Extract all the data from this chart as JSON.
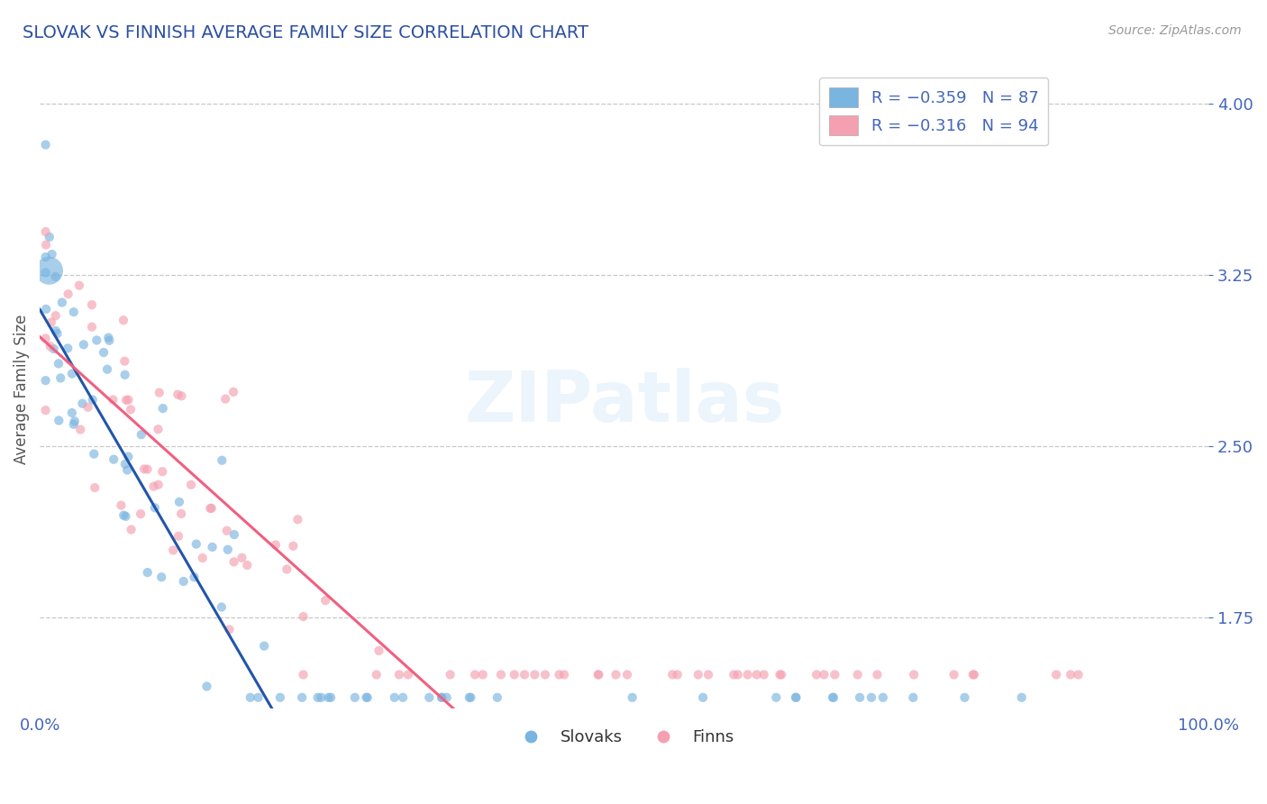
{
  "title": "SLOVAK VS FINNISH AVERAGE FAMILY SIZE CORRELATION CHART",
  "source": "Source: ZipAtlas.com",
  "ylabel": "Average Family Size",
  "xlim": [
    0.0,
    100.0
  ],
  "ylim": [
    1.35,
    4.15
  ],
  "yticks": [
    1.75,
    2.5,
    3.25,
    4.0
  ],
  "xticks": [
    0.0,
    100.0
  ],
  "xticklabels": [
    "0.0%",
    "100.0%"
  ],
  "title_color": "#2b4fa0",
  "tick_color": "#4466bb",
  "grid_color": "#c8c8c8",
  "slovak_color": "#7ab4e0",
  "finn_color": "#f4a0b0",
  "slovak_line_color": "#2255aa",
  "finn_line_color": "#f06080",
  "slovak_intercept": 3.1,
  "slovak_slope": -0.0088,
  "finn_intercept": 2.98,
  "finn_slope": -0.0046,
  "slovak_dash_start": 82,
  "seed": 42
}
